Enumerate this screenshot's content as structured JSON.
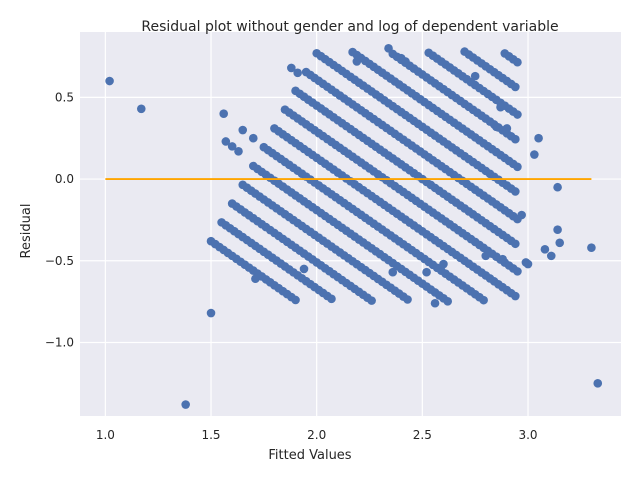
{
  "chart_data": {
    "type": "scatter",
    "title": "Residual plot without gender and log of dependent variable",
    "xlabel": "Fitted Values",
    "ylabel": "Residual",
    "xlim": [
      0.88,
      3.44
    ],
    "ylim": [
      -1.45,
      0.9
    ],
    "x_ticks": [
      1.0,
      1.5,
      2.0,
      2.5,
      3.0
    ],
    "x_tick_labels": [
      "1.0",
      "1.5",
      "2.0",
      "2.5",
      "3.0"
    ],
    "y_ticks": [
      -1.0,
      -0.5,
      0.0,
      0.5
    ],
    "y_tick_labels": [
      "−1.0",
      "−0.5",
      "0.0",
      "0.5"
    ],
    "grid": true,
    "background": "#eaeaf2",
    "point_color": "#4c72b0",
    "reference_line": {
      "y": 0.0,
      "x_start": 1.0,
      "x_end": 3.3,
      "color": "#ffa500"
    },
    "band_structure": {
      "band_offsets": [
        0.0,
        0.05,
        0.1,
        0.15,
        0.2,
        0.25,
        0.3,
        0.35,
        0.4,
        0.45,
        0.5,
        0.55,
        0.6,
        0.65,
        0.7,
        0.75,
        0.8
      ],
      "slope": -1.0,
      "x_step": 0.02,
      "base_band_x_start": 1.5,
      "base_band_y_start": -0.38,
      "x_max": 2.95,
      "y_max": 0.78
    },
    "outliers": [
      [
        1.02,
        0.6
      ],
      [
        1.17,
        0.43
      ],
      [
        1.38,
        -1.38
      ],
      [
        1.5,
        -0.82
      ],
      [
        2.56,
        -0.76
      ],
      [
        3.33,
        -1.25
      ],
      [
        3.3,
        -0.42
      ],
      [
        3.15,
        -0.39
      ],
      [
        3.14,
        -0.31
      ],
      [
        3.14,
        -0.05
      ],
      [
        3.11,
        -0.47
      ],
      [
        3.08,
        -0.43
      ],
      [
        3.05,
        0.25
      ],
      [
        3.03,
        0.15
      ],
      [
        3.0,
        -0.52
      ],
      [
        2.99,
        -0.51
      ],
      [
        2.97,
        -0.22
      ],
      [
        1.56,
        0.4
      ],
      [
        1.65,
        0.3
      ],
      [
        1.57,
        0.23
      ],
      [
        1.6,
        0.2
      ],
      [
        1.63,
        0.17
      ],
      [
        1.7,
        0.25
      ],
      [
        1.88,
        0.68
      ],
      [
        1.91,
        0.65
      ],
      [
        2.19,
        0.72
      ],
      [
        2.34,
        0.8
      ],
      [
        2.4,
        0.74
      ],
      [
        2.42,
        0.72
      ],
      [
        2.75,
        0.63
      ],
      [
        2.87,
        0.44
      ],
      [
        2.85,
        0.32
      ],
      [
        2.9,
        0.31
      ],
      [
        1.94,
        -0.55
      ],
      [
        1.71,
        -0.61
      ],
      [
        2.52,
        -0.57
      ],
      [
        2.36,
        -0.57
      ],
      [
        2.6,
        -0.52
      ],
      [
        2.88,
        -0.49
      ],
      [
        2.8,
        -0.47
      ]
    ]
  }
}
